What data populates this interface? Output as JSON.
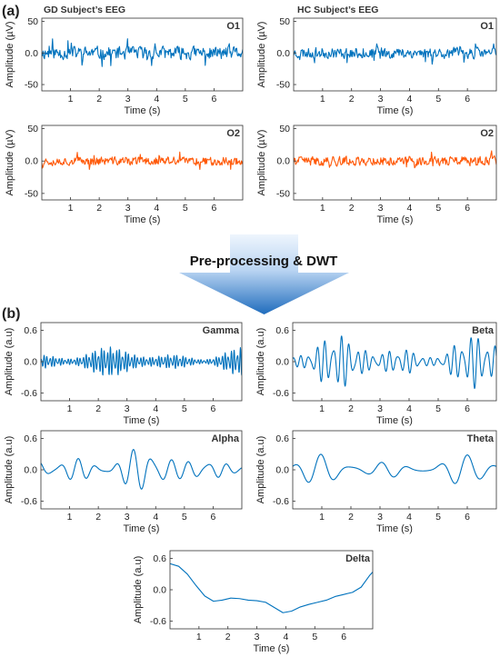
{
  "panel_a": {
    "tag": "(a)",
    "left_heading": "GD Subject’s EEG",
    "right_heading": "HC Subject’s EEG"
  },
  "panel_b": {
    "tag": "(b)"
  },
  "arrow": {
    "label": "Pre-processing & DWT"
  },
  "colors": {
    "blue": "#0072BD",
    "orange": "#ff5a0a",
    "arrow_top": "#eef5fd",
    "arrow_bottom": "#2a73bf",
    "text": "#222222"
  },
  "chart_data": [
    {
      "id": "gd-o1",
      "type": "line",
      "channel": "O1",
      "color": "blue",
      "seed": 11,
      "mode": "noise",
      "xlabel": "Time (s)",
      "ylabel": "Amplitude (µV)",
      "xlim": [
        0,
        7
      ],
      "ylim": [
        -60,
        55
      ],
      "xticks": [
        1,
        2,
        3,
        4,
        5,
        6
      ],
      "yticks": [
        50,
        0,
        -50
      ],
      "ytick_labels": [
        "50",
        "0.0",
        "-50"
      ],
      "amplitude": 17
    },
    {
      "id": "hc-o1",
      "type": "line",
      "channel": "O1",
      "color": "blue",
      "seed": 23,
      "mode": "noise",
      "xlabel": "Time (s)",
      "ylabel": "Amplitude (µV)",
      "xlim": [
        0,
        7
      ],
      "ylim": [
        -60,
        55
      ],
      "xticks": [
        1,
        2,
        3,
        4,
        5,
        6
      ],
      "yticks": [
        50,
        0,
        -50
      ],
      "ytick_labels": [
        "50",
        "0.0",
        "-50"
      ],
      "amplitude": 14
    },
    {
      "id": "gd-o2",
      "type": "line",
      "channel": "O2",
      "color": "orange",
      "seed": 37,
      "mode": "noise",
      "xlabel": "Time (s)",
      "ylabel": "Amplitude (µV)",
      "xlim": [
        0,
        7
      ],
      "ylim": [
        -60,
        55
      ],
      "xticks": [
        1,
        2,
        3,
        4,
        5,
        6
      ],
      "yticks": [
        50,
        0,
        -50
      ],
      "ytick_labels": [
        "50",
        "0.0",
        "-50"
      ],
      "amplitude": 11
    },
    {
      "id": "hc-o2",
      "type": "line",
      "channel": "O2",
      "color": "orange",
      "seed": 41,
      "mode": "noise",
      "xlabel": "Time (s)",
      "ylabel": "Amplitude (µV)",
      "xlim": [
        0,
        7
      ],
      "ylim": [
        -60,
        55
      ],
      "xticks": [
        1,
        2,
        3,
        4,
        5,
        6
      ],
      "yticks": [
        50,
        0,
        -50
      ],
      "ytick_labels": [
        "50",
        "0.0",
        "-50"
      ],
      "amplitude": 12
    },
    {
      "id": "gamma",
      "type": "line",
      "channel": "Gamma",
      "color": "blue",
      "seed": 5,
      "mode": "osc",
      "freq": 9.5,
      "xlabel": "Time (s)",
      "ylabel": "Amplitude (a.u)",
      "xlim": [
        0,
        7
      ],
      "ylim": [
        -0.75,
        0.75
      ],
      "xticks": [
        1,
        2,
        3,
        4,
        5,
        6
      ],
      "yticks": [
        0.6,
        0,
        -0.6
      ],
      "ytick_labels": [
        "0.6",
        "0.0",
        "-0.6"
      ],
      "amplitude": 0.18
    },
    {
      "id": "beta",
      "type": "line",
      "channel": "Beta",
      "color": "blue",
      "seed": 7,
      "mode": "osc",
      "freq": 3.6,
      "xlabel": "Time (s)",
      "ylabel": "Amplitude (a.u)",
      "xlim": [
        0,
        7
      ],
      "ylim": [
        -0.75,
        0.75
      ],
      "xticks": [
        1,
        2,
        3,
        4,
        5,
        6
      ],
      "yticks": [
        0.6,
        0,
        -0.6
      ],
      "ytick_labels": [
        "0.6",
        "0.0",
        "-0.6"
      ],
      "amplitude": 0.33
    },
    {
      "id": "alpha",
      "type": "line",
      "channel": "Alpha",
      "color": "blue",
      "seed": 13,
      "mode": "osc",
      "freq": 1.55,
      "xlabel": "Time (s)",
      "ylabel": "Amplitude (a.u)",
      "xlim": [
        0,
        7
      ],
      "ylim": [
        -0.75,
        0.75
      ],
      "xticks": [
        1,
        2,
        3,
        4,
        5,
        6
      ],
      "yticks": [
        0.6,
        0,
        -0.6
      ],
      "ytick_labels": [
        "0.6",
        "0.0",
        "-0.6"
      ],
      "amplitude": 0.3
    },
    {
      "id": "theta",
      "type": "line",
      "channel": "Theta",
      "color": "blue",
      "seed": 19,
      "mode": "osc",
      "freq": 1.0,
      "xlabel": "Time (s)",
      "ylabel": "Amplitude (a.u)",
      "xlim": [
        0,
        7
      ],
      "ylim": [
        -0.75,
        0.75
      ],
      "xticks": [
        1,
        2,
        3,
        4,
        5,
        6
      ],
      "yticks": [
        0.6,
        0,
        -0.6
      ],
      "ytick_labels": [
        "0.6",
        "0.0",
        "-0.6"
      ],
      "amplitude": 0.2
    },
    {
      "id": "delta",
      "type": "line",
      "channel": "Delta",
      "color": "blue",
      "mode": "points",
      "xlabel": "Time (s)",
      "ylabel": "Amplitude (a.u)",
      "xlim": [
        0,
        7
      ],
      "ylim": [
        -0.75,
        0.75
      ],
      "xticks": [
        1,
        2,
        3,
        4,
        5,
        6
      ],
      "yticks": [
        0.6,
        0,
        -0.6
      ],
      "ytick_labels": [
        "0.6",
        "0.0",
        "-0.6"
      ],
      "x": [
        0,
        0.3,
        0.6,
        0.9,
        1.2,
        1.5,
        1.8,
        2.1,
        2.4,
        2.7,
        3.0,
        3.3,
        3.6,
        3.9,
        4.2,
        4.5,
        4.8,
        5.1,
        5.4,
        5.7,
        6.0,
        6.3,
        6.6,
        6.9,
        7.0
      ],
      "y": [
        0.5,
        0.45,
        0.3,
        0.08,
        -0.12,
        -0.22,
        -0.2,
        -0.16,
        -0.17,
        -0.2,
        -0.21,
        -0.24,
        -0.34,
        -0.44,
        -0.41,
        -0.33,
        -0.28,
        -0.24,
        -0.2,
        -0.13,
        -0.09,
        -0.05,
        0.05,
        0.28,
        0.34
      ]
    }
  ]
}
